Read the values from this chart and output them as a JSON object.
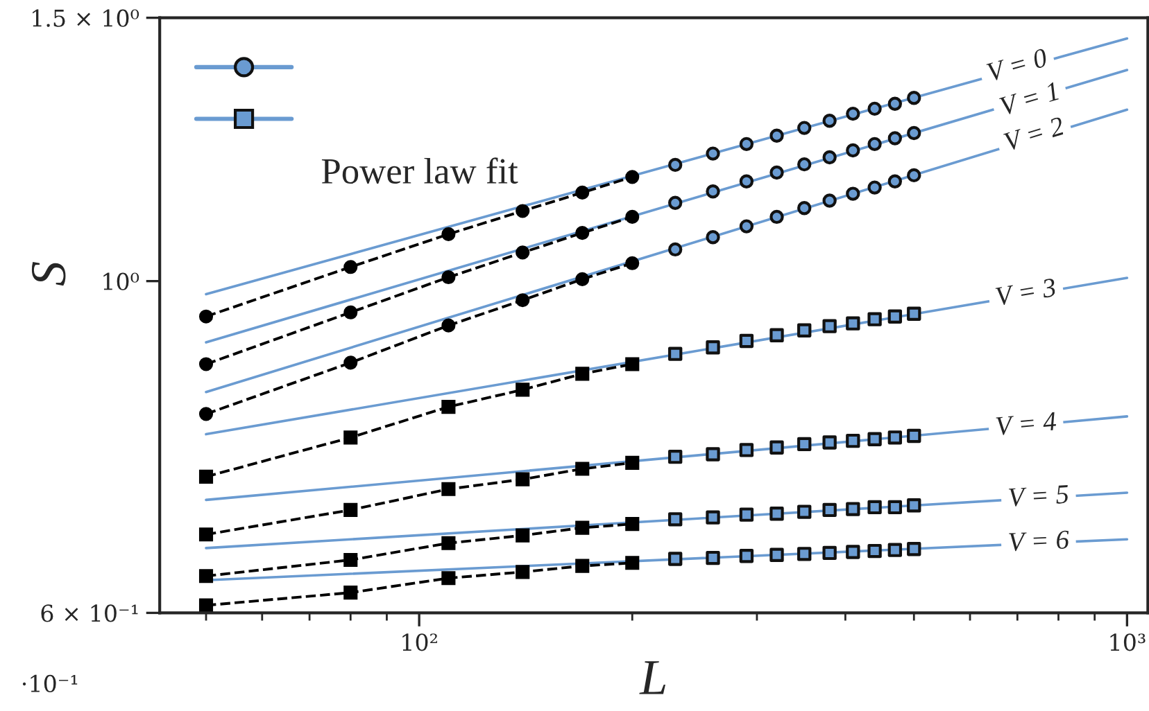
{
  "chart_data": {
    "type": "line",
    "xlabel": "L",
    "ylabel": "S",
    "log": "xy",
    "xlim": [
      43,
      1070
    ],
    "ylim": [
      0.6,
      1.5
    ],
    "xticks": [
      {
        "value": 50,
        "label": null
      },
      {
        "value": 60,
        "label": null
      },
      {
        "value": 70,
        "label": null
      },
      {
        "value": 80,
        "label": null
      },
      {
        "value": 90,
        "label": null
      },
      {
        "value": 100,
        "label": "10²"
      },
      {
        "value": 200,
        "label": null
      },
      {
        "value": 300,
        "label": null
      },
      {
        "value": 400,
        "label": null
      },
      {
        "value": 500,
        "label": null
      },
      {
        "value": 600,
        "label": null
      },
      {
        "value": 700,
        "label": null
      },
      {
        "value": 800,
        "label": null
      },
      {
        "value": 900,
        "label": null
      },
      {
        "value": 1000,
        "label": "10³"
      }
    ],
    "yticks": [
      {
        "value": 0.6,
        "label": "6 × 10⁻¹"
      },
      {
        "value": 1.0,
        "label": "10⁰"
      },
      {
        "value": 1.5,
        "label": "1.5 × 10⁰"
      }
    ],
    "grid": false,
    "legend": "top left",
    "series": [
      {
        "type": "line",
        "color": "#000000",
        "line_style": "dashed",
        "marker": "circle",
        "x": [
          50,
          80,
          110,
          140,
          170,
          200
        ],
        "values": [
          0.947,
          1.022,
          1.075,
          1.114,
          1.146,
          1.174
        ]
      },
      {
        "type": "line",
        "color": "#000000",
        "line_style": "dashed",
        "marker": "circle",
        "x": [
          50,
          80,
          110,
          140,
          170,
          200
        ],
        "values": [
          0.88,
          0.953,
          1.006,
          1.045,
          1.077,
          1.104
        ]
      },
      {
        "type": "line",
        "color": "#000000",
        "line_style": "dashed",
        "marker": "circle",
        "x": [
          50,
          80,
          110,
          140,
          170,
          200
        ],
        "values": [
          0.815,
          0.882,
          0.934,
          0.971,
          1.003,
          1.028
        ]
      },
      {
        "type": "line",
        "color": "#000000",
        "line_style": "dashed",
        "marker": "square",
        "x": [
          50,
          80,
          110,
          140,
          170,
          200
        ],
        "values": [
          0.74,
          0.786,
          0.824,
          0.846,
          0.867,
          0.88
        ]
      },
      {
        "type": "line",
        "color": "#000000",
        "line_style": "dashed",
        "marker": "square",
        "x": [
          50,
          80,
          110,
          140,
          170,
          200
        ],
        "values": [
          0.677,
          0.703,
          0.726,
          0.737,
          0.749,
          0.756
        ]
      },
      {
        "type": "line",
        "color": "#000000",
        "line_style": "dashed",
        "marker": "square",
        "x": [
          50,
          80,
          110,
          140,
          170,
          200
        ],
        "values": [
          0.635,
          0.651,
          0.668,
          0.676,
          0.684,
          0.688
        ]
      },
      {
        "type": "line",
        "color": "#000000",
        "line_style": "dashed",
        "marker": "square",
        "x": [
          50,
          80,
          110,
          140,
          170,
          200
        ],
        "values": [
          0.607,
          0.619,
          0.633,
          0.639,
          0.645,
          0.648
        ]
      },
      {
        "type": "line",
        "name": "Power law fit",
        "color": "#6a9bd1",
        "line_style": "solid",
        "marker": "none",
        "x": [
          50,
          1000
        ],
        "values": [
          0.98,
          1.453
        ]
      },
      {
        "type": "line",
        "color": "#6a9bd1",
        "line_style": "solid",
        "marker": "none",
        "x": [
          50,
          1000
        ],
        "values": [
          0.91,
          1.384
        ]
      },
      {
        "type": "line",
        "color": "#6a9bd1",
        "line_style": "solid",
        "marker": "none",
        "x": [
          50,
          1000
        ],
        "values": [
          0.843,
          1.302
        ]
      },
      {
        "type": "line",
        "color": "#6a9bd1",
        "line_style": "solid",
        "marker": "none",
        "x": [
          50,
          1000
        ],
        "values": [
          0.79,
          1.005
        ]
      },
      {
        "type": "line",
        "color": "#6a9bd1",
        "line_style": "solid",
        "marker": "none",
        "x": [
          50,
          1000
        ],
        "values": [
          0.714,
          0.812
        ]
      },
      {
        "type": "line",
        "color": "#6a9bd1",
        "line_style": "solid",
        "marker": "none",
        "x": [
          50,
          1000
        ],
        "values": [
          0.663,
          0.722
        ]
      },
      {
        "type": "line",
        "color": "#6a9bd1",
        "line_style": "solid",
        "marker": "none",
        "x": [
          50,
          1000
        ],
        "values": [
          0.631,
          0.672
        ]
      },
      {
        "type": "scatter",
        "color": "#6a9bd1",
        "marker": "circle",
        "x": [
          230,
          260,
          290,
          320,
          350,
          380,
          410,
          440,
          470,
          500
        ],
        "values": [
          1.196,
          1.217,
          1.235,
          1.251,
          1.266,
          1.28,
          1.294,
          1.304,
          1.314,
          1.326
        ]
      },
      {
        "type": "scatter",
        "color": "#6a9bd1",
        "marker": "circle",
        "x": [
          230,
          260,
          290,
          320,
          350,
          380,
          410,
          440,
          470,
          500
        ],
        "values": [
          1.128,
          1.148,
          1.166,
          1.182,
          1.197,
          1.21,
          1.223,
          1.235,
          1.246,
          1.256
        ]
      },
      {
        "type": "scatter",
        "color": "#6a9bd1",
        "marker": "circle",
        "x": [
          230,
          260,
          290,
          320,
          350,
          380,
          410,
          440,
          470,
          500
        ],
        "values": [
          1.05,
          1.07,
          1.088,
          1.104,
          1.119,
          1.132,
          1.144,
          1.155,
          1.166,
          1.177
        ]
      },
      {
        "type": "scatter",
        "color": "#6a9bd1",
        "marker": "square",
        "x": [
          230,
          260,
          290,
          320,
          350,
          380,
          410,
          440,
          470,
          500
        ],
        "values": [
          0.894,
          0.903,
          0.912,
          0.92,
          0.927,
          0.933,
          0.937,
          0.943,
          0.947,
          0.951
        ]
      },
      {
        "type": "scatter",
        "color": "#6a9bd1",
        "marker": "square",
        "x": [
          230,
          260,
          290,
          320,
          350,
          380,
          410,
          440,
          470,
          500
        ],
        "values": [
          0.763,
          0.766,
          0.771,
          0.774,
          0.778,
          0.78,
          0.782,
          0.784,
          0.786,
          0.788
        ]
      },
      {
        "type": "scatter",
        "color": "#6a9bd1",
        "marker": "square",
        "x": [
          230,
          260,
          290,
          320,
          350,
          380,
          410,
          440,
          470,
          500
        ],
        "values": [
          0.693,
          0.695,
          0.698,
          0.699,
          0.701,
          0.703,
          0.704,
          0.706,
          0.706,
          0.708
        ]
      },
      {
        "type": "scatter",
        "color": "#6a9bd1",
        "marker": "square",
        "x": [
          230,
          260,
          290,
          320,
          350,
          380,
          410,
          440,
          470,
          500
        ],
        "values": [
          0.652,
          0.653,
          0.655,
          0.656,
          0.657,
          0.658,
          0.659,
          0.66,
          0.661,
          0.662
        ]
      }
    ],
    "annotations": [
      {
        "text": "V = 0",
        "x": 700,
        "y": 1.39
      },
      {
        "text": "V = 1",
        "x": 730,
        "y": 1.32
      },
      {
        "text": "V = 2",
        "x": 740,
        "y": 1.25
      },
      {
        "text": "V = 3",
        "x": 720,
        "y": 0.98
      },
      {
        "text": "V = 4",
        "x": 720,
        "y": 0.8
      },
      {
        "text": "V = 5",
        "x": 750,
        "y": 0.716
      },
      {
        "text": "V = 6",
        "x": 750,
        "y": 0.668
      },
      "·10⁻¹"
    ]
  }
}
